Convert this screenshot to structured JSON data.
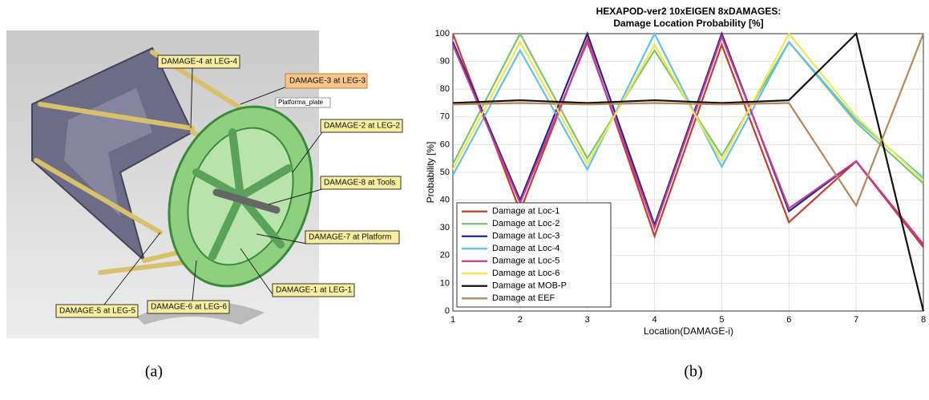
{
  "panel_a": {
    "labels": [
      "DAMAGE-4 at LEG-4",
      "DAMAGE-3 at LEG-3",
      "Platforma_plate",
      "DAMAGE-2 at LEG-2",
      "DAMAGE-8 at Tools",
      "DAMAGE-7 at Platform",
      "DAMAGE-1 at LEG-1",
      "DAMAGE-5 at LEG-5",
      "DAMAGE-6 at LEG-6"
    ],
    "caption": "(a)"
  },
  "caption_b": "(b)",
  "chart_data": {
    "type": "line",
    "title": "HEXAPOD-ver2 10xEIGEN 8xDAMAGES:",
    "subtitle": "Damage Location Probability [%]",
    "x_label": "Location(DAMAGE-i)",
    "y_label": "Probability [%]",
    "x": [
      1,
      2,
      3,
      4,
      5,
      6,
      7,
      8
    ],
    "xlim": [
      1,
      8
    ],
    "xticks": [
      1,
      2,
      3,
      4,
      5,
      6,
      7,
      8
    ],
    "ylim": [
      0,
      100
    ],
    "yticks": [
      0,
      10,
      20,
      30,
      40,
      50,
      60,
      70,
      80,
      90,
      100
    ],
    "grid": true,
    "legend": "lower left",
    "series": [
      {
        "name": "Damage at Loc-1",
        "color": "#cc3b2a",
        "values": [
          100,
          36,
          98,
          27,
          96,
          32,
          54,
          23
        ]
      },
      {
        "name": "Damage at Loc-2",
        "color": "#7cc56c",
        "values": [
          53,
          100,
          55,
          94,
          56,
          97,
          68,
          46
        ]
      },
      {
        "name": "Damage at Loc-3",
        "color": "#23238f",
        "values": [
          97,
          40,
          100,
          31,
          100,
          36,
          54,
          24
        ]
      },
      {
        "name": "Damage at Loc-4",
        "color": "#5ec2ee",
        "values": [
          49,
          94,
          51,
          100,
          52,
          97,
          69,
          48
        ]
      },
      {
        "name": "Damage at Loc-5",
        "color": "#c93a93",
        "values": [
          96,
          39,
          97,
          30,
          99,
          37,
          54,
          24
        ]
      },
      {
        "name": "Damage at Loc-6",
        "color": "#f4e649",
        "values": [
          51,
          97,
          53,
          96,
          54,
          100,
          70,
          47
        ]
      },
      {
        "name": "Damage at MOB-P",
        "color": "#111111",
        "values": [
          75,
          76,
          75,
          76,
          75,
          76,
          100,
          0
        ]
      },
      {
        "name": "Damage at EEF",
        "color": "#b88658",
        "values": [
          74.5,
          75,
          74.5,
          75,
          74.5,
          75,
          38,
          100
        ]
      }
    ]
  }
}
